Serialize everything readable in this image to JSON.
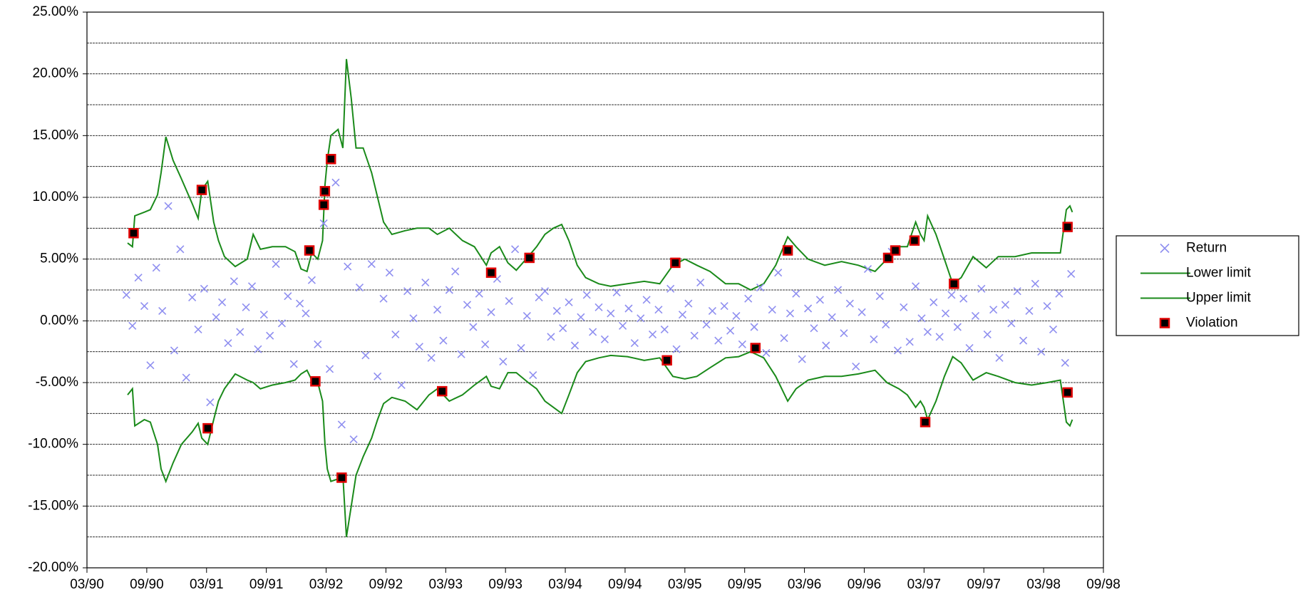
{
  "chart_data": {
    "type": "line",
    "xlim": [
      1990.17,
      1998.67
    ],
    "xticks": [
      {
        "value": 1990.17,
        "label": "03/90"
      },
      {
        "value": 1990.67,
        "label": "09/90"
      },
      {
        "value": 1991.17,
        "label": "03/91"
      },
      {
        "value": 1991.67,
        "label": "09/91"
      },
      {
        "value": 1992.17,
        "label": "03/92"
      },
      {
        "value": 1992.67,
        "label": "09/92"
      },
      {
        "value": 1993.17,
        "label": "03/93"
      },
      {
        "value": 1993.67,
        "label": "09/93"
      },
      {
        "value": 1994.17,
        "label": "03/94"
      },
      {
        "value": 1994.67,
        "label": "09/94"
      },
      {
        "value": 1995.17,
        "label": "03/95"
      },
      {
        "value": 1995.67,
        "label": "09/95"
      },
      {
        "value": 1996.17,
        "label": "03/96"
      },
      {
        "value": 1996.67,
        "label": "09/96"
      },
      {
        "value": 1997.17,
        "label": "03/97"
      },
      {
        "value": 1997.67,
        "label": "09/97"
      },
      {
        "value": 1998.17,
        "label": "03/98"
      },
      {
        "value": 1998.67,
        "label": "09/98"
      }
    ],
    "ylim": [
      -20,
      25
    ],
    "yticks": [
      {
        "value": 25,
        "label": "25.00%"
      },
      {
        "value": 20,
        "label": "20.00%"
      },
      {
        "value": 15,
        "label": "15.00%"
      },
      {
        "value": 10,
        "label": "10.00%"
      },
      {
        "value": 5,
        "label": "5.00%"
      },
      {
        "value": 0,
        "label": "0.00%"
      },
      {
        "value": -5,
        "label": "-5.00%"
      },
      {
        "value": -10,
        "label": "-10.00%"
      },
      {
        "value": -15,
        "label": "-15.00%"
      },
      {
        "value": -20,
        "label": "-20.00%"
      }
    ],
    "minor_gridlines": [
      22.5,
      17.5,
      12.5,
      7.5,
      2.5,
      -2.5,
      -7.5,
      -12.5,
      -17.5
    ],
    "grid": true,
    "legend": "right",
    "series": [
      {
        "name": "Return",
        "kind": "scatter",
        "color": "#8f8ff0",
        "x": [
          1990.5,
          1990.55,
          1990.6,
          1990.65,
          1990.7,
          1990.75,
          1990.8,
          1990.85,
          1990.9,
          1990.95,
          1991.0,
          1991.05,
          1991.1,
          1991.15,
          1991.2,
          1991.25,
          1991.3,
          1991.35,
          1991.4,
          1991.45,
          1991.5,
          1991.55,
          1991.6,
          1991.65,
          1991.7,
          1991.75,
          1991.8,
          1991.85,
          1991.9,
          1991.95,
          1992.0,
          1992.05,
          1992.1,
          1992.15,
          1992.2,
          1992.25,
          1992.3,
          1992.35,
          1992.4,
          1992.45,
          1992.5,
          1992.55,
          1992.6,
          1992.65,
          1992.7,
          1992.75,
          1992.8,
          1992.85,
          1992.9,
          1992.95,
          1993.0,
          1993.05,
          1993.1,
          1993.15,
          1993.2,
          1993.25,
          1993.3,
          1993.35,
          1993.4,
          1993.45,
          1993.5,
          1993.55,
          1993.6,
          1993.65,
          1993.7,
          1993.75,
          1993.8,
          1993.85,
          1993.9,
          1993.95,
          1994.0,
          1994.05,
          1994.1,
          1994.15,
          1994.2,
          1994.25,
          1994.3,
          1994.35,
          1994.4,
          1994.45,
          1994.5,
          1994.55,
          1994.6,
          1994.65,
          1994.7,
          1994.75,
          1994.8,
          1994.85,
          1994.9,
          1994.95,
          1995.0,
          1995.05,
          1995.1,
          1995.15,
          1995.2,
          1995.25,
          1995.3,
          1995.35,
          1995.4,
          1995.45,
          1995.5,
          1995.55,
          1995.6,
          1995.65,
          1995.7,
          1995.75,
          1995.8,
          1995.85,
          1995.9,
          1995.95,
          1996.0,
          1996.05,
          1996.1,
          1996.15,
          1996.2,
          1996.25,
          1996.3,
          1996.35,
          1996.4,
          1996.45,
          1996.5,
          1996.55,
          1996.6,
          1996.65,
          1996.7,
          1996.75,
          1996.8,
          1996.85,
          1996.9,
          1996.95,
          1997.0,
          1997.05,
          1997.1,
          1997.15,
          1997.2,
          1997.25,
          1997.3,
          1997.35,
          1997.4,
          1997.45,
          1997.5,
          1997.55,
          1997.6,
          1997.65,
          1997.7,
          1997.75,
          1997.8,
          1997.85,
          1997.9,
          1997.95,
          1998.0,
          1998.05,
          1998.1,
          1998.15,
          1998.2,
          1998.25,
          1998.3,
          1998.35,
          1998.4
        ],
        "values": [
          2.1,
          -0.4,
          3.5,
          1.2,
          -3.6,
          4.3,
          0.8,
          9.3,
          -2.4,
          5.8,
          -4.6,
          1.9,
          -0.7,
          2.6,
          -6.6,
          0.3,
          1.5,
          -1.8,
          3.2,
          -0.9,
          1.1,
          2.8,
          -2.3,
          0.5,
          -1.2,
          4.6,
          -0.2,
          2.0,
          -3.5,
          1.4,
          0.6,
          3.3,
          -1.9,
          7.9,
          -3.9,
          11.2,
          -8.4,
          4.4,
          -9.6,
          2.7,
          -2.8,
          4.6,
          -4.5,
          1.8,
          3.9,
          -1.1,
          -5.2,
          2.4,
          0.2,
          -2.1,
          3.1,
          -3.0,
          0.9,
          -1.6,
          2.5,
          4.0,
          -2.7,
          1.3,
          -0.5,
          2.2,
          -1.9,
          0.7,
          3.4,
          -3.3,
          1.6,
          5.8,
          -2.2,
          0.4,
          -4.4,
          1.9,
          2.4,
          -1.3,
          0.8,
          -0.6,
          1.5,
          -2.0,
          0.3,
          2.1,
          -0.9,
          1.1,
          -1.5,
          0.6,
          2.3,
          -0.4,
          1.0,
          -1.8,
          0.2,
          1.7,
          -1.1,
          0.9,
          -0.7,
          2.6,
          -2.3,
          0.5,
          1.4,
          -1.2,
          3.1,
          -0.3,
          0.8,
          -1.6,
          1.2,
          -0.8,
          0.4,
          -1.9,
          1.8,
          -0.5,
          2.7,
          -2.6,
          0.9,
          3.9,
          -1.4,
          0.6,
          2.2,
          -3.1,
          1.0,
          -0.6,
          1.7,
          -2.0,
          0.3,
          2.5,
          -1.0,
          1.4,
          -3.7,
          0.7,
          4.2,
          -1.5,
          2.0,
          -0.3,
          5.6,
          -2.4,
          1.1,
          -1.7,
          2.8,
          0.2,
          -0.9,
          1.5,
          -1.3,
          0.6,
          2.1,
          -0.5,
          1.8,
          -2.2,
          0.4,
          2.6,
          -1.1,
          0.9,
          -3.0,
          1.3,
          -0.2,
          2.4,
          -1.6,
          0.8,
          3.0,
          -2.5,
          1.2,
          -0.7,
          2.2,
          -3.4,
          3.8
        ]
      },
      {
        "name": "Lower limit",
        "kind": "line",
        "color": "#1a8a1a",
        "x": [
          1990.51,
          1990.55,
          1990.57,
          1990.65,
          1990.7,
          1990.76,
          1990.79,
          1990.83,
          1990.89,
          1990.96,
          1991.05,
          1991.1,
          1991.13,
          1991.18,
          1991.23,
          1991.27,
          1991.32,
          1991.41,
          1991.51,
          1991.56,
          1991.62,
          1991.72,
          1991.83,
          1991.91,
          1991.96,
          1992.01,
          1992.05,
          1992.1,
          1992.14,
          1992.16,
          1992.18,
          1992.21,
          1992.27,
          1992.31,
          1992.34,
          1992.38,
          1992.42,
          1992.48,
          1992.55,
          1992.6,
          1992.65,
          1992.72,
          1992.83,
          1992.93,
          1993.03,
          1993.1,
          1993.2,
          1993.31,
          1993.41,
          1993.51,
          1993.55,
          1993.62,
          1993.69,
          1993.76,
          1993.86,
          1993.93,
          1994.0,
          1994.07,
          1994.14,
          1994.2,
          1994.27,
          1994.34,
          1994.45,
          1994.55,
          1994.69,
          1994.83,
          1994.96,
          1995.07,
          1995.17,
          1995.27,
          1995.38,
          1995.51,
          1995.62,
          1995.72,
          1995.83,
          1995.93,
          1996.03,
          1996.1,
          1996.2,
          1996.34,
          1996.48,
          1996.62,
          1996.76,
          1996.86,
          1996.96,
          1997.03,
          1997.1,
          1997.14,
          1997.17,
          1997.2,
          1997.27,
          1997.34,
          1997.41,
          1997.48,
          1997.58,
          1997.69,
          1997.79,
          1997.93,
          1998.07,
          1998.2,
          1998.31,
          1998.36,
          1998.39,
          1998.41
        ],
        "values": [
          -6.0,
          -5.5,
          -8.5,
          -8.0,
          -8.2,
          -10,
          -12,
          -13,
          -11.5,
          -10,
          -9.0,
          -8.3,
          -9.5,
          -10.0,
          -8.0,
          -6.5,
          -5.5,
          -4.3,
          -4.8,
          -5.0,
          -5.5,
          -5.2,
          -5.0,
          -4.8,
          -4.3,
          -4.0,
          -4.8,
          -5.0,
          -6.5,
          -10.0,
          -12.0,
          -13.0,
          -12.8,
          -12.5,
          -17.5,
          -15.0,
          -12.5,
          -11.0,
          -9.5,
          -8.0,
          -6.7,
          -6.2,
          -6.5,
          -7.2,
          -6.0,
          -5.5,
          -6.5,
          -6.0,
          -5.2,
          -4.5,
          -5.3,
          -5.5,
          -4.2,
          -4.2,
          -5.0,
          -5.5,
          -6.5,
          -7.0,
          -7.5,
          -6.0,
          -4.2,
          -3.3,
          -3.0,
          -2.8,
          -2.9,
          -3.2,
          -3.0,
          -4.5,
          -4.7,
          -4.5,
          -3.8,
          -3.0,
          -2.9,
          -2.5,
          -3.0,
          -4.5,
          -6.5,
          -5.5,
          -4.8,
          -4.5,
          -4.5,
          -4.3,
          -4.0,
          -5.0,
          -5.5,
          -6.0,
          -7.0,
          -6.5,
          -7.0,
          -8.0,
          -6.5,
          -4.5,
          -2.9,
          -3.4,
          -4.8,
          -4.2,
          -4.5,
          -5.0,
          -5.2,
          -5.0,
          -4.8,
          -8.2,
          -8.5,
          -8.0
        ]
      },
      {
        "name": "Upper limit",
        "kind": "line",
        "color": "#1a8a1a",
        "x": [
          1990.51,
          1990.55,
          1990.57,
          1990.65,
          1990.7,
          1990.76,
          1990.79,
          1990.83,
          1990.89,
          1990.96,
          1991.05,
          1991.1,
          1991.13,
          1991.18,
          1991.23,
          1991.27,
          1991.32,
          1991.41,
          1991.51,
          1991.56,
          1991.62,
          1991.72,
          1991.83,
          1991.91,
          1991.96,
          1992.01,
          1992.05,
          1992.1,
          1992.14,
          1992.16,
          1992.18,
          1992.21,
          1992.27,
          1992.31,
          1992.34,
          1992.38,
          1992.42,
          1992.48,
          1992.55,
          1992.6,
          1992.65,
          1992.72,
          1992.83,
          1992.93,
          1993.03,
          1993.1,
          1993.2,
          1993.31,
          1993.41,
          1993.51,
          1993.55,
          1993.62,
          1993.69,
          1993.76,
          1993.86,
          1993.93,
          1994.0,
          1994.07,
          1994.14,
          1994.2,
          1994.27,
          1994.34,
          1994.45,
          1994.55,
          1994.69,
          1994.83,
          1994.96,
          1995.07,
          1995.17,
          1995.27,
          1995.38,
          1995.51,
          1995.62,
          1995.72,
          1995.83,
          1995.93,
          1996.03,
          1996.1,
          1996.2,
          1996.34,
          1996.48,
          1996.62,
          1996.76,
          1996.86,
          1996.96,
          1997.03,
          1997.1,
          1997.14,
          1997.17,
          1997.2,
          1997.27,
          1997.34,
          1997.41,
          1997.48,
          1997.58,
          1997.69,
          1997.79,
          1997.93,
          1998.07,
          1998.2,
          1998.31,
          1998.36,
          1998.39,
          1998.41
        ],
        "values": [
          6.3,
          6.0,
          8.5,
          8.8,
          9.0,
          10.2,
          12,
          14.9,
          13,
          11.5,
          9.5,
          8.3,
          10.6,
          11.3,
          8.0,
          6.5,
          5.2,
          4.4,
          5.0,
          7.0,
          5.8,
          6.0,
          6.0,
          5.6,
          4.2,
          4.0,
          5.5,
          5.0,
          6.5,
          11.0,
          13.0,
          15.0,
          15.5,
          14.0,
          21.2,
          18.0,
          14.0,
          14.0,
          12.0,
          10.0,
          8.0,
          7.0,
          7.3,
          7.5,
          7.5,
          7.0,
          7.5,
          6.5,
          6.0,
          4.5,
          5.5,
          6.0,
          4.7,
          4.1,
          5.2,
          6.0,
          7.0,
          7.5,
          7.8,
          6.5,
          4.5,
          3.5,
          3.0,
          2.8,
          3.0,
          3.2,
          3.0,
          4.5,
          5.0,
          4.5,
          4.0,
          3.0,
          3.0,
          2.5,
          3.0,
          4.5,
          6.8,
          6.0,
          5.0,
          4.5,
          4.8,
          4.5,
          4.0,
          5.0,
          6.0,
          6.0,
          8.0,
          7.0,
          6.5,
          8.5,
          7.0,
          5.0,
          3.0,
          3.5,
          5.2,
          4.3,
          5.2,
          5.2,
          5.5,
          5.5,
          5.5,
          9.0,
          9.3,
          8.8
        ]
      },
      {
        "name": "Violation",
        "kind": "marker",
        "color": "#000000",
        "edge_color": "#e00000",
        "x": [
          1990.56,
          1991.13,
          1991.18,
          1992.03,
          1992.08,
          1992.15,
          1992.16,
          1992.21,
          1992.3,
          1993.14,
          1993.55,
          1993.87,
          1995.02,
          1995.09,
          1995.76,
          1996.03,
          1996.87,
          1996.93,
          1997.09,
          1997.18,
          1997.42,
          1998.37,
          1998.37
        ],
        "values": [
          7.1,
          10.6,
          -8.7,
          5.7,
          -4.9,
          9.4,
          10.5,
          13.1,
          -12.7,
          -5.7,
          3.9,
          5.1,
          -3.2,
          4.7,
          -2.2,
          5.7,
          5.1,
          5.7,
          6.5,
          -8.2,
          3.0,
          7.6,
          -5.8
        ]
      }
    ]
  }
}
